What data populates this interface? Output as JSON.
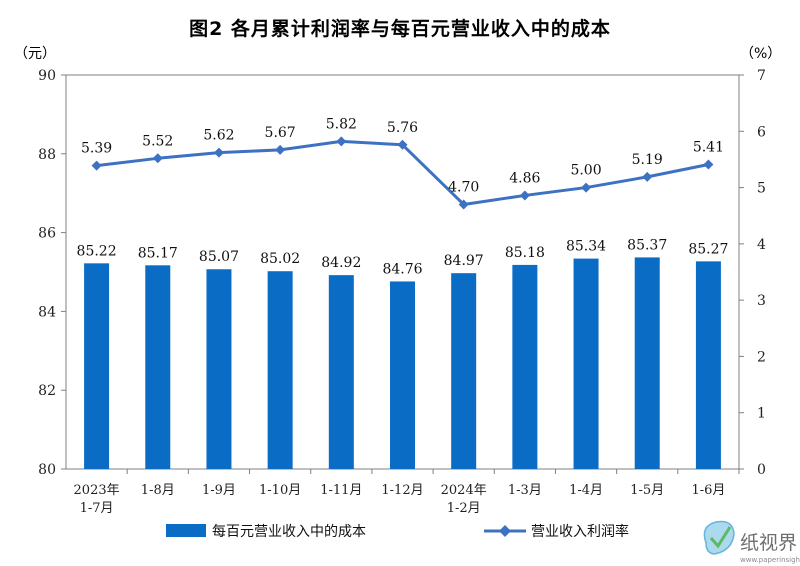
{
  "title": "图2  各月累计利润率与每百元营业收入中的成本",
  "chart_data": {
    "type": "bar+line",
    "categories": [
      [
        "2023年",
        "1-7月"
      ],
      [
        "1-8月"
      ],
      [
        "1-9月"
      ],
      [
        "1-10月"
      ],
      [
        "1-11月"
      ],
      [
        "1-12月"
      ],
      [
        "2024年",
        "1-2月"
      ],
      [
        "1-3月"
      ],
      [
        "1-4月"
      ],
      [
        "1-5月"
      ],
      [
        "1-6月"
      ]
    ],
    "series": [
      {
        "name": "每百元营业收入中的成本",
        "type": "bar",
        "axis": "left",
        "values": [
          85.22,
          85.17,
          85.07,
          85.02,
          84.92,
          84.76,
          84.97,
          85.18,
          85.34,
          85.37,
          85.27
        ],
        "labels": [
          "85.22",
          "85.17",
          "85.07",
          "85.02",
          "84.92",
          "84.76",
          "84.97",
          "85.18",
          "85.34",
          "85.37",
          "85.27"
        ]
      },
      {
        "name": "营业收入利润率",
        "type": "line",
        "axis": "right",
        "values": [
          5.39,
          5.52,
          5.62,
          5.67,
          5.82,
          5.76,
          4.7,
          4.86,
          5.0,
          5.19,
          5.41
        ],
        "labels": [
          "5.39",
          "5.52",
          "5.62",
          "5.67",
          "5.82",
          "5.76",
          "4.70",
          "4.86",
          "5.00",
          "5.19",
          "5.41"
        ]
      }
    ],
    "y_left": {
      "unit": "（元）",
      "ylim": [
        80,
        90
      ],
      "ticks": [
        80,
        82,
        84,
        86,
        88,
        90
      ]
    },
    "y_right": {
      "unit": "（%）",
      "ylim": [
        0,
        7
      ],
      "ticks": [
        0,
        1,
        2,
        3,
        4,
        5,
        6,
        7
      ]
    },
    "grid": false,
    "legend_position": "bottom",
    "colors": {
      "bar": "#0a6cc4",
      "line": "#3d72c2",
      "axis": "#808080"
    }
  },
  "watermark": {
    "text": "纸视界",
    "url": "www.paperinsight.net"
  }
}
